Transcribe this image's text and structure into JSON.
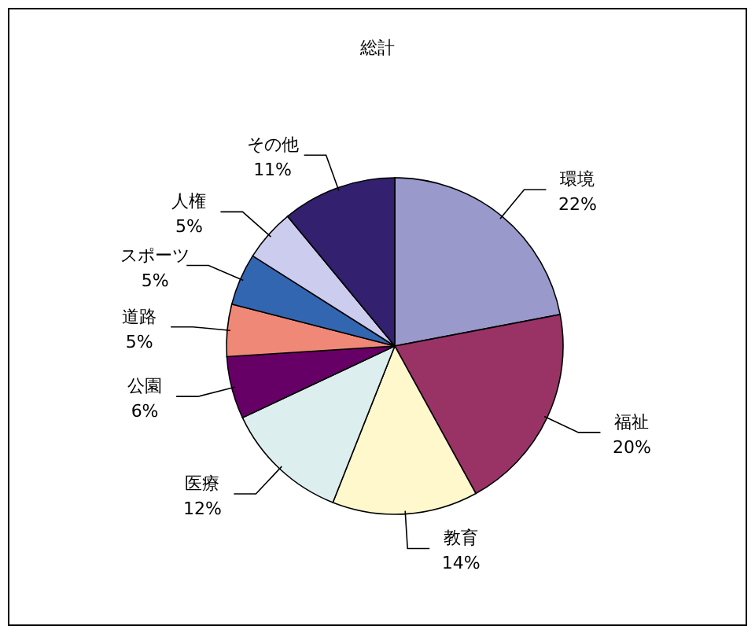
{
  "chart_data": {
    "type": "pie",
    "title": "総計",
    "categories": [
      "環境",
      "福祉",
      "教育",
      "医療",
      "公園",
      "道路",
      "スポーツ",
      "人権",
      "その他"
    ],
    "values": [
      22,
      20,
      14,
      12,
      6,
      5,
      5,
      5,
      11
    ],
    "value_labels": [
      "22%",
      "20%",
      "14%",
      "12%",
      "6%",
      "5%",
      "5%",
      "5%",
      "11%"
    ],
    "colors": [
      "#9999cc",
      "#993366",
      "#fff8cc",
      "#ddeeee",
      "#660066",
      "#f08878",
      "#3366b0",
      "#ccccee",
      "#33206e"
    ]
  }
}
